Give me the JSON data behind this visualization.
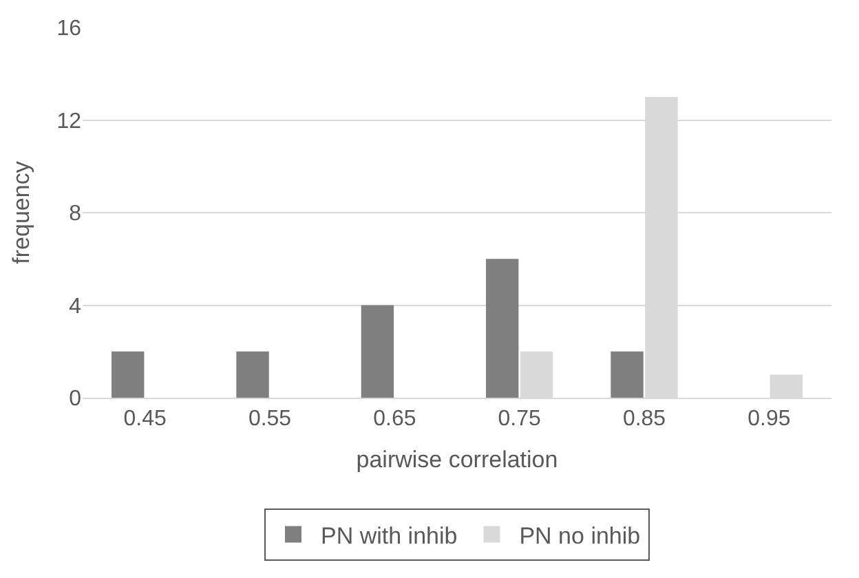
{
  "chart_data": {
    "type": "bar",
    "xlabel": "pairwise correlation",
    "ylabel": "frequency",
    "categories": [
      "0.45",
      "0.55",
      "0.65",
      "0.75",
      "0.85",
      "0.95"
    ],
    "series": [
      {
        "name": "PN with inhib",
        "color": "#7f7f7f",
        "values": [
          2,
          2,
          4,
          6,
          2,
          0
        ]
      },
      {
        "name": "PN no inhib",
        "color": "#d9d9d9",
        "values": [
          0,
          0,
          0,
          2,
          13,
          1
        ]
      }
    ],
    "ylim": [
      0,
      16
    ],
    "yticks": [
      0,
      4,
      8,
      12,
      16
    ],
    "grid": "y",
    "legend": "bottom"
  }
}
